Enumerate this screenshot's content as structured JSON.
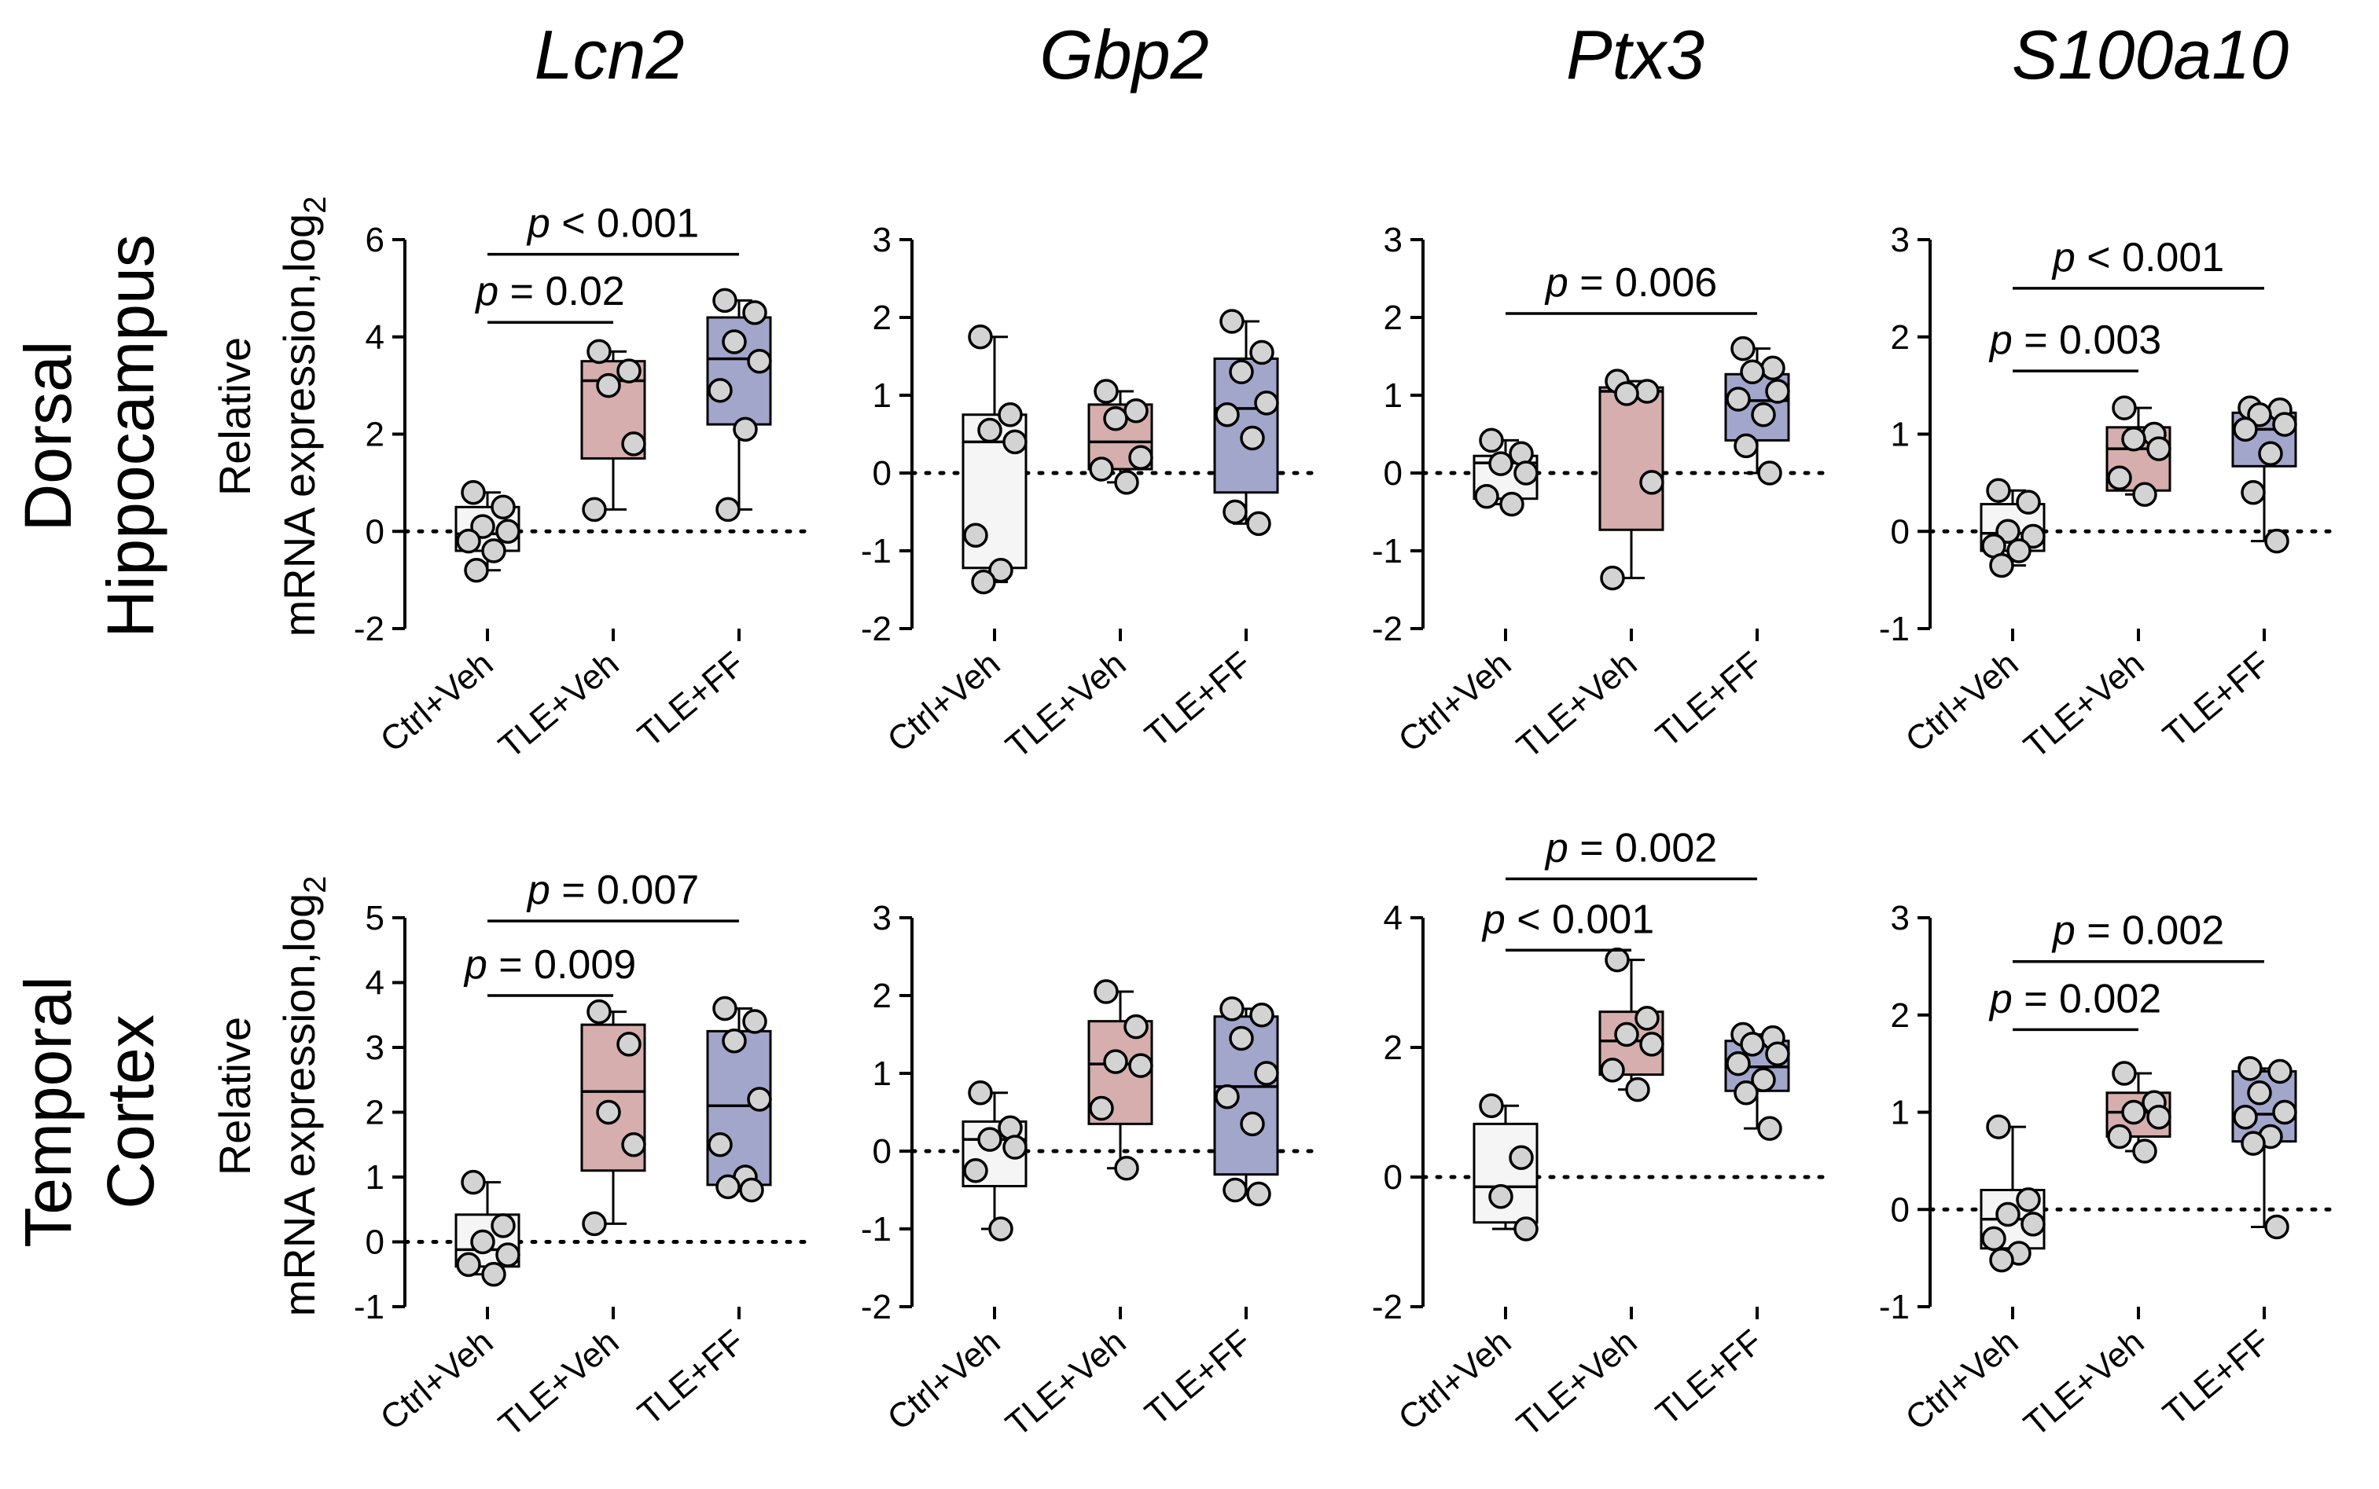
{
  "colors": {
    "Ctrl+Veh": "#f5f5f5",
    "TLE+Veh": "#d6aeae",
    "TLE+FF": "#a3a6cb",
    "point_fill": "#d3d3d3",
    "axis": "#000000"
  },
  "genes": [
    "Lcn2",
    "Gbp2",
    "Ptx3",
    "S100a10"
  ],
  "rows": [
    {
      "label_lines": [
        "Dorsal",
        "Hippocampus"
      ]
    },
    {
      "label_lines": [
        "Temporal",
        "Cortex"
      ]
    }
  ],
  "y_axis_title": {
    "line1": "Relative",
    "line2_main": "mRNA expression,log",
    "line2_sub": "2"
  },
  "chart_data": [
    {
      "type": "box",
      "gene": "Lcn2",
      "region": "Dorsal Hippocampus",
      "ylim": [
        -2,
        6
      ],
      "yticks": [
        -2,
        0,
        2,
        4,
        6
      ],
      "categories": [
        "Ctrl+Veh",
        "TLE+Veh",
        "TLE+FF"
      ],
      "groups": [
        {
          "name": "Ctrl+Veh",
          "min": -0.8,
          "q1": -0.4,
          "median": -0.05,
          "q3": 0.5,
          "max": 0.8,
          "points": [
            0.8,
            0.5,
            0.1,
            0.0,
            -0.2,
            -0.4,
            -0.8
          ]
        },
        {
          "name": "TLE+Veh",
          "min": 0.45,
          "q1": 1.5,
          "median": 3.1,
          "q3": 3.5,
          "max": 3.7,
          "points": [
            3.7,
            3.3,
            3.0,
            1.8,
            0.45
          ]
        },
        {
          "name": "TLE+FF",
          "min": 0.45,
          "q1": 2.2,
          "median": 3.55,
          "q3": 4.4,
          "max": 4.75,
          "points": [
            4.75,
            4.5,
            3.9,
            3.5,
            2.9,
            2.1,
            0.45
          ]
        }
      ],
      "comparisons": [
        {
          "from": "Ctrl+Veh",
          "to": "TLE+Veh",
          "label": "p = 0.02",
          "y": 4.3
        },
        {
          "from": "Ctrl+Veh",
          "to": "TLE+FF",
          "label": "p < 0.001",
          "y": 5.7
        }
      ]
    },
    {
      "type": "box",
      "gene": "Gbp2",
      "region": "Dorsal Hippocampus",
      "ylim": [
        -2,
        3
      ],
      "yticks": [
        -2,
        -1,
        0,
        1,
        2,
        3
      ],
      "categories": [
        "Ctrl+Veh",
        "TLE+Veh",
        "TLE+FF"
      ],
      "groups": [
        {
          "name": "Ctrl+Veh",
          "min": -1.4,
          "q1": -1.22,
          "median": 0.4,
          "q3": 0.75,
          "max": 1.75,
          "points": [
            1.75,
            0.75,
            0.55,
            0.4,
            -0.8,
            -1.25,
            -1.4
          ]
        },
        {
          "name": "TLE+Veh",
          "min": -0.12,
          "q1": 0.05,
          "median": 0.4,
          "q3": 0.88,
          "max": 1.05,
          "points": [
            1.05,
            0.8,
            0.7,
            0.2,
            0.05,
            -0.12
          ]
        },
        {
          "name": "TLE+FF",
          "min": -0.65,
          "q1": -0.25,
          "median": 0.83,
          "q3": 1.47,
          "max": 1.95,
          "points": [
            1.95,
            1.55,
            1.3,
            0.9,
            0.75,
            0.45,
            -0.5,
            -0.65
          ]
        }
      ],
      "comparisons": []
    },
    {
      "type": "box",
      "gene": "Ptx3",
      "region": "Dorsal Hippocampus",
      "ylim": [
        -2,
        3
      ],
      "yticks": [
        -2,
        -1,
        0,
        1,
        2,
        3
      ],
      "categories": [
        "Ctrl+Veh",
        "TLE+Veh",
        "TLE+FF"
      ],
      "groups": [
        {
          "name": "Ctrl+Veh",
          "min": -0.4,
          "q1": -0.33,
          "median": 0.13,
          "q3": 0.22,
          "max": 0.42,
          "points": [
            0.42,
            0.25,
            0.12,
            0.0,
            -0.3,
            -0.4
          ]
        },
        {
          "name": "TLE+Veh",
          "min": -1.35,
          "q1": -0.73,
          "median": 1.05,
          "q3": 1.1,
          "max": 1.18,
          "points": [
            1.18,
            1.05,
            1.02,
            -0.12,
            -1.35
          ]
        },
        {
          "name": "TLE+FF",
          "min": 0.0,
          "q1": 0.42,
          "median": 0.93,
          "q3": 1.27,
          "max": 1.6,
          "points": [
            1.6,
            1.35,
            1.3,
            1.05,
            0.95,
            0.75,
            0.35,
            0.0
          ]
        }
      ],
      "comparisons": [
        {
          "from": "Ctrl+Veh",
          "to": "TLE+FF",
          "label": "p = 0.006",
          "y": 2.05
        }
      ]
    },
    {
      "type": "box",
      "gene": "S100a10",
      "region": "Dorsal Hippocampus",
      "ylim": [
        -1,
        3
      ],
      "yticks": [
        -1,
        0,
        1,
        2,
        3
      ],
      "categories": [
        "Ctrl+Veh",
        "TLE+Veh",
        "TLE+FF"
      ],
      "groups": [
        {
          "name": "Ctrl+Veh",
          "min": -0.35,
          "q1": -0.2,
          "median": -0.02,
          "q3": 0.28,
          "max": 0.42,
          "points": [
            0.42,
            0.3,
            0.0,
            -0.05,
            -0.15,
            -0.2,
            -0.35
          ]
        },
        {
          "name": "TLE+Veh",
          "min": 0.38,
          "q1": 0.42,
          "median": 0.85,
          "q3": 1.07,
          "max": 1.27,
          "points": [
            1.27,
            1.0,
            0.95,
            0.85,
            0.55,
            0.38
          ]
        },
        {
          "name": "TLE+FF",
          "min": -0.1,
          "q1": 0.67,
          "median": 1.05,
          "q3": 1.22,
          "max": 1.27,
          "points": [
            1.27,
            1.25,
            1.2,
            1.1,
            1.05,
            0.8,
            0.4,
            -0.1
          ]
        }
      ],
      "comparisons": [
        {
          "from": "Ctrl+Veh",
          "to": "TLE+Veh",
          "label": "p = 0.003",
          "y": 1.65
        },
        {
          "from": "Ctrl+Veh",
          "to": "TLE+FF",
          "label": "p < 0.001",
          "y": 2.5
        }
      ]
    },
    {
      "type": "box",
      "gene": "Lcn2",
      "region": "Temporal Cortex",
      "ylim": [
        -1,
        5
      ],
      "yticks": [
        -1,
        0,
        1,
        2,
        3,
        4,
        5
      ],
      "categories": [
        "Ctrl+Veh",
        "TLE+Veh",
        "TLE+FF"
      ],
      "groups": [
        {
          "name": "Ctrl+Veh",
          "min": -0.5,
          "q1": -0.38,
          "median": -0.12,
          "q3": 0.42,
          "max": 0.92,
          "points": [
            0.92,
            0.25,
            0.0,
            -0.2,
            -0.35,
            -0.5
          ]
        },
        {
          "name": "TLE+Veh",
          "min": 0.28,
          "q1": 1.1,
          "median": 2.32,
          "q3": 3.35,
          "max": 3.55,
          "points": [
            3.55,
            3.05,
            2.0,
            1.5,
            0.28
          ]
        },
        {
          "name": "TLE+FF",
          "min": 0.8,
          "q1": 0.88,
          "median": 2.1,
          "q3": 3.25,
          "max": 3.6,
          "points": [
            3.6,
            3.4,
            3.1,
            2.2,
            1.5,
            1.0,
            0.85,
            0.8
          ]
        }
      ],
      "comparisons": [
        {
          "from": "Ctrl+Veh",
          "to": "TLE+Veh",
          "label": "p = 0.009",
          "y": 3.8
        },
        {
          "from": "Ctrl+Veh",
          "to": "TLE+FF",
          "label": "p = 0.007",
          "y": 4.95
        }
      ]
    },
    {
      "type": "box",
      "gene": "Gbp2",
      "region": "Temporal Cortex",
      "ylim": [
        -2,
        3
      ],
      "yticks": [
        -2,
        -1,
        0,
        1,
        2,
        3
      ],
      "categories": [
        "Ctrl+Veh",
        "TLE+Veh",
        "TLE+FF"
      ],
      "groups": [
        {
          "name": "Ctrl+Veh",
          "min": -1.0,
          "q1": -0.45,
          "median": 0.15,
          "q3": 0.38,
          "max": 0.75,
          "points": [
            0.75,
            0.3,
            0.15,
            0.05,
            -0.25,
            -1.0
          ]
        },
        {
          "name": "TLE+Veh",
          "min": -0.22,
          "q1": 0.35,
          "median": 1.12,
          "q3": 1.67,
          "max": 2.05,
          "points": [
            2.05,
            1.6,
            1.15,
            1.1,
            0.55,
            -0.22
          ]
        },
        {
          "name": "TLE+FF",
          "min": -0.55,
          "q1": -0.3,
          "median": 0.83,
          "q3": 1.73,
          "max": 1.83,
          "points": [
            1.83,
            1.75,
            1.45,
            1.0,
            0.7,
            0.35,
            -0.5,
            -0.55
          ]
        }
      ],
      "comparisons": []
    },
    {
      "type": "box",
      "gene": "Ptx3",
      "region": "Temporal Cortex",
      "ylim": [
        -2,
        4
      ],
      "yticks": [
        -2,
        0,
        2,
        4
      ],
      "categories": [
        "Ctrl+Veh",
        "TLE+Veh",
        "TLE+FF"
      ],
      "groups": [
        {
          "name": "Ctrl+Veh",
          "min": -0.8,
          "q1": -0.7,
          "median": -0.15,
          "q3": 0.82,
          "max": 1.1,
          "points": [
            1.1,
            0.3,
            -0.3,
            -0.8
          ]
        },
        {
          "name": "TLE+Veh",
          "min": 1.35,
          "q1": 1.58,
          "median": 2.1,
          "q3": 2.55,
          "max": 3.35,
          "points": [
            3.35,
            2.45,
            2.2,
            2.05,
            1.65,
            1.35
          ]
        },
        {
          "name": "TLE+FF",
          "min": 0.75,
          "q1": 1.33,
          "median": 1.7,
          "q3": 2.1,
          "max": 2.2,
          "points": [
            2.2,
            2.15,
            2.05,
            1.9,
            1.75,
            1.5,
            1.3,
            0.75
          ]
        }
      ],
      "comparisons": [
        {
          "from": "Ctrl+Veh",
          "to": "TLE+Veh",
          "label": "p < 0.001",
          "y": 3.5
        },
        {
          "from": "Ctrl+Veh",
          "to": "TLE+FF",
          "label": "p = 0.002",
          "y": 4.6
        }
      ]
    },
    {
      "type": "box",
      "gene": "S100a10",
      "region": "Temporal Cortex",
      "ylim": [
        -1,
        3
      ],
      "yticks": [
        -1,
        0,
        1,
        2,
        3
      ],
      "categories": [
        "Ctrl+Veh",
        "TLE+Veh",
        "TLE+FF"
      ],
      "groups": [
        {
          "name": "Ctrl+Veh",
          "min": -0.52,
          "q1": -0.4,
          "median": -0.1,
          "q3": 0.2,
          "max": 0.85,
          "points": [
            0.85,
            0.1,
            -0.05,
            -0.15,
            -0.3,
            -0.45,
            -0.52
          ]
        },
        {
          "name": "TLE+Veh",
          "min": 0.6,
          "q1": 0.75,
          "median": 1.0,
          "q3": 1.2,
          "max": 1.4,
          "points": [
            1.4,
            1.1,
            1.0,
            0.95,
            0.75,
            0.6
          ]
        },
        {
          "name": "TLE+FF",
          "min": -0.18,
          "q1": 0.7,
          "median": 0.98,
          "q3": 1.42,
          "max": 1.45,
          "points": [
            1.45,
            1.42,
            1.2,
            1.0,
            0.95,
            0.75,
            0.68,
            -0.18
          ]
        }
      ],
      "comparisons": [
        {
          "from": "Ctrl+Veh",
          "to": "TLE+Veh",
          "label": "p = 0.002",
          "y": 1.85
        },
        {
          "from": "Ctrl+Veh",
          "to": "TLE+FF",
          "label": "p = 0.002",
          "y": 2.55
        }
      ]
    }
  ]
}
